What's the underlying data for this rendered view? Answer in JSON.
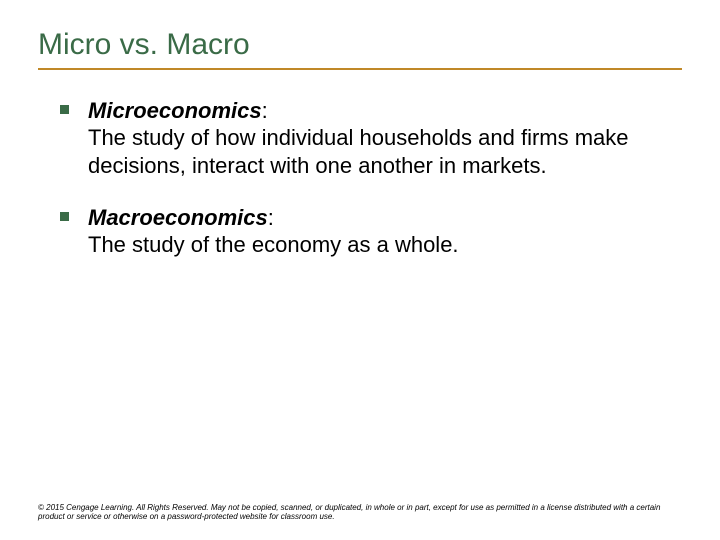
{
  "colors": {
    "title_text": "#3a6b47",
    "title_underline": "#c08828",
    "bullet_marker": "#3a6b47",
    "body_text": "#000000",
    "background": "#ffffff"
  },
  "title": "Micro vs. Macro",
  "bullets": [
    {
      "term": "Microeconomics",
      "definition": "The study of how individual households and firms make decisions, interact with one another in markets."
    },
    {
      "term": "Macroeconomics",
      "definition": "The study of the economy as a whole."
    }
  ],
  "footer": "© 2015 Cengage Learning. All Rights Reserved. May not be copied, scanned, or duplicated, in whole or in part, except for use as permitted in a license distributed with a certain product or service or otherwise on a password-protected website for classroom use."
}
